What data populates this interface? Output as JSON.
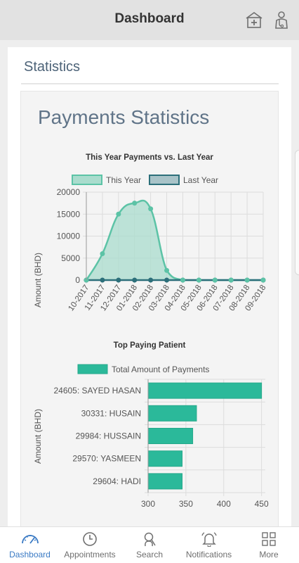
{
  "header": {
    "title": "Dashboard",
    "icons": [
      "hospital-icon",
      "doctor-icon"
    ]
  },
  "statistics": {
    "title": "Statistics",
    "panel_title": "Payments Statistics"
  },
  "charts": {
    "line": {
      "title": "This Year Payments vs. Last Year",
      "legend": [
        "This Year",
        "Last Year"
      ]
    },
    "bar": {
      "title": "Top Paying Patient",
      "legend": [
        "Total Amount of Payments"
      ]
    }
  },
  "chart_data": [
    {
      "type": "area",
      "title": "This Year Payments vs. Last Year",
      "xlabel": "",
      "ylabel": "Amount (BHD)",
      "ylim": [
        0,
        20000
      ],
      "yticks": [
        0,
        5000,
        10000,
        15000,
        20000
      ],
      "categories": [
        "10-2017",
        "11-2017",
        "12-2017",
        "01-2018",
        "02-2018",
        "03-2018",
        "04-2018",
        "05-2018",
        "06-2018",
        "07-2018",
        "08-2018",
        "09-2018"
      ],
      "series": [
        {
          "name": "This Year",
          "values": [
            0,
            6000,
            15000,
            17500,
            16200,
            2200,
            0,
            0,
            0,
            0,
            0,
            0
          ],
          "color": "#5cc3a6",
          "fill": "#a9dccd"
        },
        {
          "name": "Last Year",
          "values": [
            0,
            0,
            0,
            0,
            0,
            0,
            0,
            0,
            0,
            0,
            0,
            0
          ],
          "color": "#2c6f7a",
          "fill": "#a8c3c8"
        }
      ],
      "grid": true,
      "legend_position": "top"
    },
    {
      "type": "bar",
      "orientation": "horizontal",
      "title": "Top Paying Patient",
      "xlabel": "",
      "ylabel": "Amount (BHD)",
      "xlim": [
        300,
        460
      ],
      "xticks": [
        300,
        350,
        400,
        450
      ],
      "categories": [
        "24605: SAYED HASAN",
        "30331: HUSAIN",
        "29984: HUSSAIN",
        "29570: YASMEEN",
        "29604: HADI"
      ],
      "series": [
        {
          "name": "Total Amount of Payments",
          "values": [
            450,
            364,
            359,
            345,
            345
          ],
          "color": "#2bb99a"
        }
      ],
      "grid": true,
      "legend_position": "top"
    }
  ],
  "bottom_nav": [
    {
      "label": "Dashboard",
      "icon": "speedometer-icon",
      "active": true
    },
    {
      "label": "Appointments",
      "icon": "clock-icon",
      "active": false
    },
    {
      "label": "Search",
      "icon": "search-icon",
      "active": false
    },
    {
      "label": "Notifications",
      "icon": "bell-icon",
      "active": false
    },
    {
      "label": "More",
      "icon": "grid-icon",
      "active": false
    }
  ]
}
